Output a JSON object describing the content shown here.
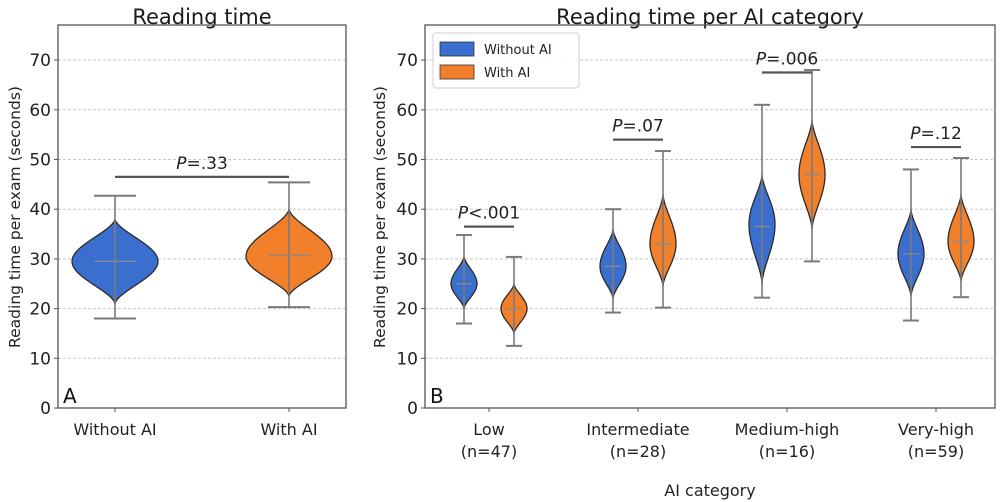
{
  "chart_data": [
    {
      "type": "violin",
      "panel_label": "A",
      "title": "Reading time",
      "xlabel": "",
      "ylabel": "Reading time per exam (seconds)",
      "ylim": [
        0,
        76
      ],
      "yticks": [
        0,
        10,
        20,
        30,
        40,
        50,
        60,
        70
      ],
      "grid": true,
      "categories": [
        "Without AI",
        "With AI"
      ],
      "series": [
        {
          "name": "Without AI",
          "color": "#3a6fcf",
          "min": 18.0,
          "max": 42.7,
          "mean": 29.5,
          "kde_low": 21.0,
          "kde_high": 38.0,
          "mode": 29.5
        },
        {
          "name": "With AI",
          "color": "#f27f2a",
          "min": 20.3,
          "max": 45.4,
          "mean": 30.7,
          "kde_low": 22.5,
          "kde_high": 40.0,
          "mode": 30.5
        }
      ],
      "annotations": [
        {
          "text_prefix": "P",
          "text_suffix": "=.33",
          "between": [
            "Without AI",
            "With AI"
          ],
          "y": 46.5
        }
      ]
    },
    {
      "type": "violin",
      "panel_label": "B",
      "title": "Reading time per AI category",
      "xlabel": "AI category",
      "ylabel": "Reading time per exam (seconds)",
      "ylim": [
        0,
        76
      ],
      "yticks": [
        0,
        10,
        20,
        30,
        40,
        50,
        60,
        70
      ],
      "grid": true,
      "legend": {
        "position": "top-left",
        "entries": [
          {
            "label": "Without AI",
            "color": "#3a6fcf"
          },
          {
            "label": "With AI",
            "color": "#f27f2a"
          }
        ]
      },
      "categories": [
        {
          "name": "Low",
          "n": "(n=47)"
        },
        {
          "name": "Intermediate",
          "n": "(n=28)"
        },
        {
          "name": "Medium-high",
          "n": "(n=16)"
        },
        {
          "name": "Very-high",
          "n": "(n=59)"
        }
      ],
      "series": [
        {
          "name": "Without AI",
          "color": "#3a6fcf",
          "groups": [
            {
              "min": 17.0,
              "max": 34.8,
              "mean": 25.0,
              "kde_low": 20.0,
              "kde_high": 30.5,
              "mode": 25.0
            },
            {
              "min": 19.2,
              "max": 40.0,
              "mean": 28.5,
              "kde_low": 22.0,
              "kde_high": 36.0,
              "mode": 28.5
            },
            {
              "min": 22.2,
              "max": 61.0,
              "mean": 36.5,
              "kde_low": 25.0,
              "kde_high": 47.0,
              "mode": 37.0
            },
            {
              "min": 17.6,
              "max": 48.0,
              "mean": 31.0,
              "kde_low": 22.5,
              "kde_high": 40.0,
              "mode": 31.0
            }
          ]
        },
        {
          "name": "With AI",
          "color": "#f27f2a",
          "groups": [
            {
              "min": 12.5,
              "max": 30.4,
              "mean": 20.0,
              "kde_low": 15.0,
              "kde_high": 25.0,
              "mode": 20.0
            },
            {
              "min": 20.2,
              "max": 51.7,
              "mean": 33.0,
              "kde_low": 24.5,
              "kde_high": 43.0,
              "mode": 33.0
            },
            {
              "min": 29.5,
              "max": 68.0,
              "mean": 47.0,
              "kde_low": 36.0,
              "kde_high": 58.0,
              "mode": 47.0
            },
            {
              "min": 22.3,
              "max": 50.3,
              "mean": 33.5,
              "kde_low": 25.5,
              "kde_high": 43.0,
              "mode": 33.5
            }
          ]
        }
      ],
      "annotations": [
        {
          "text_prefix": "P",
          "text_suffix": "<.001",
          "group": 0,
          "y": 36.5
        },
        {
          "text_prefix": "P",
          "text_suffix": "=.07",
          "group": 1,
          "y": 54.0
        },
        {
          "text_prefix": "P",
          "text_suffix": "=.006",
          "group": 2,
          "y": 67.5
        },
        {
          "text_prefix": "P",
          "text_suffix": "=.12",
          "group": 3,
          "y": 52.5
        }
      ]
    }
  ]
}
